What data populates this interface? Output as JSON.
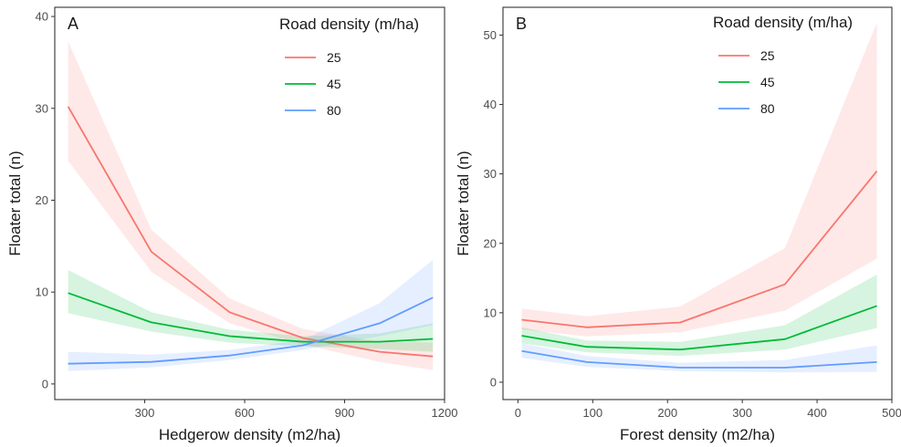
{
  "chart_data": [
    {
      "type": "line",
      "panel_label": "A",
      "xlabel": "Hedgerow density (m2/ha)",
      "ylabel": "Floater total (n)",
      "xlim": [
        30,
        1200
      ],
      "ylim": [
        -1.7,
        41
      ],
      "x_ticks": [
        300,
        600,
        900,
        1200
      ],
      "y_ticks": [
        0,
        10,
        20,
        30,
        40
      ],
      "grid": false,
      "legend": {
        "title": "Road density (m/ha)",
        "placement": "top-right"
      },
      "x": [
        70,
        320,
        555,
        775,
        1005,
        1165
      ],
      "series": [
        {
          "name": "25",
          "color": "#F8766D",
          "values": [
            30.2,
            14.4,
            7.8,
            5.0,
            3.5,
            3.0
          ],
          "lower": [
            24.3,
            12.2,
            6.6,
            4.3,
            2.4,
            1.5
          ],
          "upper": [
            37.3,
            16.8,
            9.3,
            6.0,
            4.6,
            4.5
          ]
        },
        {
          "name": "45",
          "color": "#00BA38",
          "values": [
            9.9,
            6.7,
            5.2,
            4.6,
            4.6,
            4.9
          ],
          "lower": [
            7.7,
            5.7,
            4.5,
            4.1,
            3.8,
            3.5
          ],
          "upper": [
            12.4,
            7.8,
            5.9,
            5.2,
            5.5,
            6.6
          ]
        },
        {
          "name": "80",
          "color": "#619CFF",
          "values": [
            2.2,
            2.4,
            3.1,
            4.2,
            6.6,
            9.4
          ],
          "lower": [
            1.4,
            1.8,
            2.6,
            3.7,
            5.2,
            6.4
          ],
          "upper": [
            3.5,
            3.2,
            3.7,
            4.8,
            8.8,
            13.5
          ]
        }
      ]
    },
    {
      "type": "line",
      "panel_label": "B",
      "xlabel": "Forest density (m2/ha)",
      "ylabel": "Floater total (n)",
      "xlim": [
        -20,
        500
      ],
      "ylim": [
        -2.5,
        54
      ],
      "x_ticks": [
        0,
        100,
        200,
        300,
        400,
        500
      ],
      "y_ticks": [
        0,
        10,
        20,
        30,
        40,
        50
      ],
      "grid": false,
      "legend": {
        "title": "Road density (m/ha)",
        "placement": "top-right"
      },
      "x": [
        5,
        92,
        217,
        357,
        480
      ],
      "series": [
        {
          "name": "25",
          "color": "#F8766D",
          "values": [
            9.0,
            7.9,
            8.6,
            14.1,
            30.4
          ],
          "lower": [
            7.6,
            6.6,
            7.2,
            10.3,
            17.8
          ],
          "upper": [
            10.6,
            9.5,
            10.9,
            19.3,
            51.8
          ]
        },
        {
          "name": "45",
          "color": "#00BA38",
          "values": [
            6.7,
            5.1,
            4.7,
            6.2,
            11.0
          ],
          "lower": [
            5.6,
            4.3,
            3.8,
            4.7,
            7.8
          ],
          "upper": [
            7.9,
            6.0,
            5.8,
            8.2,
            15.5
          ]
        },
        {
          "name": "80",
          "color": "#619CFF",
          "values": [
            4.5,
            2.9,
            2.1,
            2.1,
            2.9
          ],
          "lower": [
            3.5,
            2.2,
            1.6,
            1.4,
            1.5
          ],
          "upper": [
            5.6,
            3.8,
            2.8,
            3.2,
            5.3
          ]
        }
      ]
    }
  ]
}
